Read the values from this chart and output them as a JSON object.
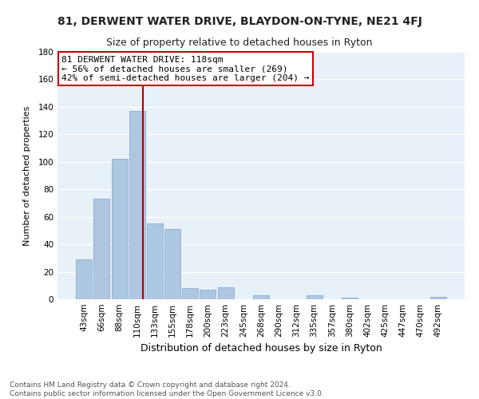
{
  "title": "81, DERWENT WATER DRIVE, BLAYDON-ON-TYNE, NE21 4FJ",
  "subtitle": "Size of property relative to detached houses in Ryton",
  "xlabel": "Distribution of detached houses by size in Ryton",
  "ylabel": "Number of detached properties",
  "categories": [
    "43sqm",
    "66sqm",
    "88sqm",
    "110sqm",
    "133sqm",
    "155sqm",
    "178sqm",
    "200sqm",
    "223sqm",
    "245sqm",
    "268sqm",
    "290sqm",
    "312sqm",
    "335sqm",
    "357sqm",
    "380sqm",
    "402sqm",
    "425sqm",
    "447sqm",
    "470sqm",
    "492sqm"
  ],
  "values": [
    29,
    73,
    102,
    137,
    55,
    51,
    8,
    7,
    9,
    0,
    3,
    0,
    0,
    3,
    0,
    1,
    0,
    0,
    0,
    0,
    2
  ],
  "bar_color": "#aec6e0",
  "bar_edge_color": "#7aa8cc",
  "property_line_color": "#aa0000",
  "annotation_text": "81 DERWENT WATER DRIVE: 118sqm\n← 56% of detached houses are smaller (269)\n42% of semi-detached houses are larger (204) →",
  "annotation_box_color": "#ffffff",
  "annotation_box_edge": "#cc0000",
  "ylim": [
    0,
    180
  ],
  "yticks": [
    0,
    20,
    40,
    60,
    80,
    100,
    120,
    140,
    160,
    180
  ],
  "footer_text": "Contains HM Land Registry data © Crown copyright and database right 2024.\nContains public sector information licensed under the Open Government Licence v3.0.",
  "background_color": "#ffffff",
  "plot_bg_color": "#e8f0f8",
  "grid_color": "#ffffff",
  "title_fontsize": 10,
  "subtitle_fontsize": 9,
  "xlabel_fontsize": 9,
  "ylabel_fontsize": 8,
  "tick_fontsize": 7.5,
  "annotation_fontsize": 8,
  "footer_fontsize": 6.5
}
